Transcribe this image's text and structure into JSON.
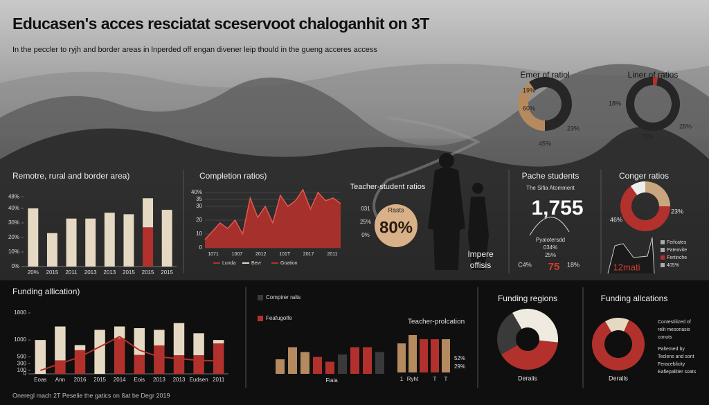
{
  "header": {
    "title": "Educasen's acces resciatat sceservoot chaloganhit on 3T",
    "subtitle": "In the peccler to ryjh and border areas in lnperded off engan divener leip thould in the gueng acceres access"
  },
  "chart_data": [
    {
      "type": "donut",
      "title": "Emer of ratiol",
      "values": [
        40,
        60
      ],
      "colors": [
        "#b48a5e",
        "#262626"
      ],
      "annotations": [
        "19%",
        "60%",
        "23%",
        "45%"
      ]
    },
    {
      "type": "donut",
      "title": "Liner of ratios",
      "values": [
        3,
        97
      ],
      "colors": [
        "#b3312c",
        "#262626"
      ],
      "annotations": [
        "18%",
        "25%",
        "78%"
      ]
    },
    {
      "type": "bar",
      "title": "Remotre, rural and border area)",
      "categories": [
        "20%",
        "2015",
        "2011",
        "2013",
        "2013",
        "2015",
        "2015",
        "2015"
      ],
      "ylim": [
        0,
        50
      ],
      "yticks": [
        {
          "value": 0,
          "label": "0%"
        },
        {
          "value": 10,
          "label": "10%"
        },
        {
          "value": 20,
          "label": "20%"
        },
        {
          "value": 30,
          "label": "30%"
        },
        {
          "value": 40,
          "label": "40%"
        },
        {
          "value": 48,
          "label": "48%"
        }
      ],
      "series": [
        {
          "color": "#b3312c",
          "values": [
            null,
            null,
            null,
            null,
            null,
            null,
            27,
            null
          ]
        },
        {
          "color": "#e6d9c3",
          "values": [
            40,
            23,
            33,
            33,
            37,
            36,
            20,
            39
          ]
        }
      ]
    },
    {
      "type": "area",
      "title": "Completion ratios)",
      "color": "#b3312c",
      "values": [
        6,
        12,
        18,
        14,
        20,
        10,
        36,
        22,
        30,
        18,
        38,
        30,
        34,
        42,
        28,
        40,
        34,
        36,
        32
      ],
      "ylim": [
        0,
        45
      ],
      "yticks": [
        0,
        10,
        20,
        30,
        35,
        {
          "value": 40,
          "label": "40%"
        }
      ],
      "x_labels": [
        "1071",
        "1007",
        "2012",
        "101T",
        "2017",
        "2011"
      ],
      "legend": [
        {
          "name": "Lunda",
          "color": "#b3312c"
        },
        {
          "name": "Bevr",
          "color": "#e6d9c3"
        },
        {
          "name": "Goation",
          "color": "#b3312c"
        }
      ]
    },
    {
      "type": "donut",
      "title": "Conger ratios",
      "values": [
        25,
        65,
        10
      ],
      "colors": [
        "#c8a77e",
        "#b3312c",
        "#eeeeee"
      ],
      "annotations": [
        "23%",
        "46%"
      ]
    },
    {
      "type": "bar",
      "title": "Funding allication)",
      "categories": [
        "Eoas",
        "Ann",
        "2016",
        "2015",
        "2014",
        "Eois",
        "2013",
        "2013",
        "Eudsen",
        "2011"
      ],
      "ylim": [
        0,
        1800
      ],
      "yticks": [
        0,
        100,
        300,
        500,
        1000,
        1800
      ],
      "series": [
        {
          "color": "#b3312c",
          "values": [
            null,
            400,
            700,
            null,
            1050,
            560,
            840,
            550,
            550,
            900
          ]
        },
        {
          "color": "#e6d9c3",
          "values": [
            1000,
            1000,
            150,
            1300,
            350,
            790,
            460,
            950,
            650,
            100
          ]
        },
        {
          "type": "line",
          "color": "#b3312c",
          "values": [
            100,
            300,
            500,
            800,
            1100,
            700,
            500,
            450,
            400,
            380
          ]
        }
      ]
    },
    {
      "type": "bars",
      "xlabel": "Fiaia",
      "values": [
        30,
        55,
        45,
        35,
        25,
        40,
        55,
        55,
        45
      ],
      "colors": [
        "#b48a5e",
        "#b48a5e",
        "#b48a5e",
        "#b3312c",
        "#b3312c",
        "#3a3a3a",
        "#b3312c",
        "#b3312c",
        "#3a3a3a"
      ],
      "legend": [
        {
          "name": "Compirer ralts",
          "color": "#3a3a3a"
        },
        {
          "name": "Feafugolfe",
          "color": "#b3312c"
        }
      ]
    },
    {
      "type": "bars",
      "title": "Teacher-prolcation",
      "values": [
        70,
        90,
        80,
        80,
        80
      ],
      "colors": [
        "#b48a5e",
        "#b48a5e",
        "#b3312c",
        "#b3312c",
        "#b48a5e"
      ],
      "categories": [
        "1",
        "Ryht",
        null,
        "T",
        "T"
      ],
      "annotations": [
        "52%",
        "29%"
      ]
    },
    {
      "type": "donut",
      "title": "Funding regions",
      "values": [
        35,
        40,
        25
      ],
      "colors": [
        "#f0ebe0",
        "#b3312c",
        "#3a3a3a"
      ],
      "annotations": [
        "Deralis"
      ]
    },
    {
      "type": "donut",
      "title": "Funding allcations",
      "values": [
        15,
        85
      ],
      "colors": [
        "#e6d9c3",
        "#b3312c"
      ],
      "annotations": [
        "Deralls"
      ]
    }
  ],
  "panels": {
    "teacher": {
      "title": "Teacher-student ratios",
      "badge": "Rasts",
      "value": "80%",
      "side": [
        "031",
        "25%",
        "0%"
      ]
    },
    "figure": {
      "caption": [
        "Impere",
        "offisis"
      ]
    },
    "pache": {
      "title": "Pache students",
      "subtitle": "The Sifia Atomment",
      "value": "1,755",
      "notes": [
        "Pyalotersdd",
        "034%",
        "25%"
      ],
      "left": "C4%",
      "highlight": "75",
      "right": "18%"
    },
    "conger_line": {
      "legend": [
        "Feifcates",
        "Pateavite",
        "Fertinche",
        "405%"
      ],
      "highlight": "12mati"
    },
    "funding_side": [
      "Contestilized of",
      "relit mesonasis",
      "conuts",
      "Paltemed by",
      "Teclens and sont",
      "Feraceblicity",
      "Eafiepalitier soats"
    ]
  },
  "footer": "Oneregl mach 2T Peselie the gatics on ßat be Degr 2019"
}
